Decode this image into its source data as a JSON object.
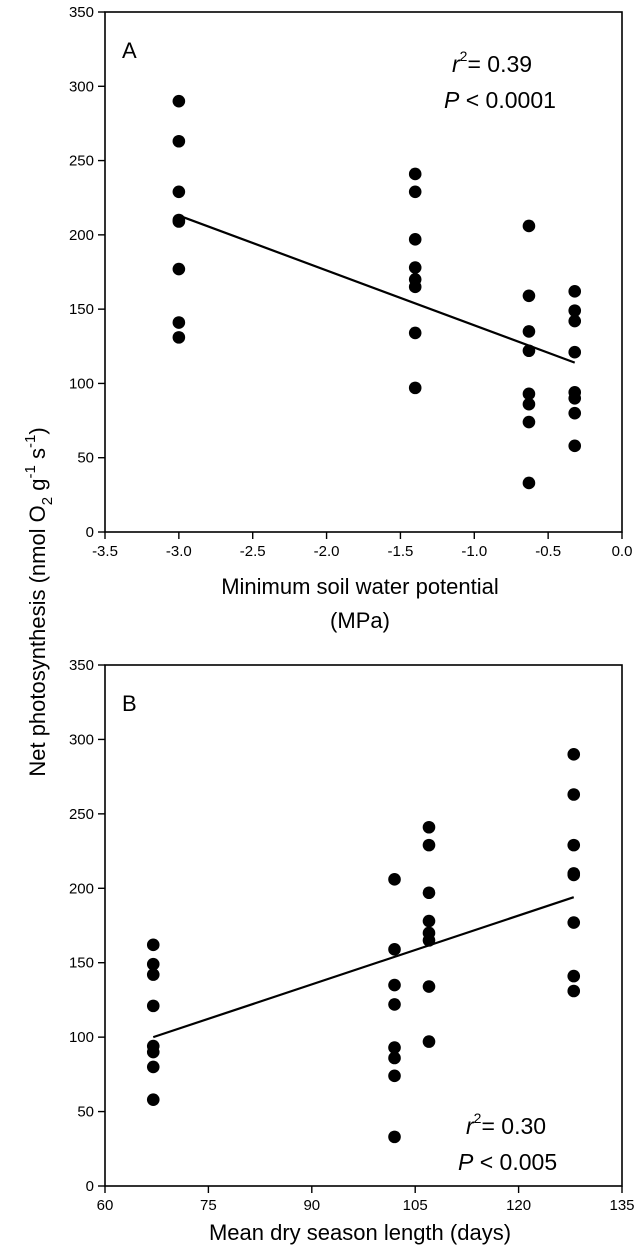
{
  "ylabel": "Net photosynthesis (nmol O₂ g⁻¹ s⁻¹)",
  "ylabel_parts": {
    "main": "Net photosynthesis (nmol O",
    "sub2": "2",
    "mid": " g",
    "sup1": "-1",
    "mid2": " s",
    "sup2": "-1",
    "end": ")"
  },
  "chart_data": [
    {
      "type": "scatter",
      "panel": "A",
      "xlabel": "Minimum soil water potential (MPa)",
      "xlabel_line1": "Minimum soil water potential",
      "xlabel_line2": "(MPa)",
      "ylabel": "Net photosynthesis (nmol O2 g-1 s-1)",
      "xlim": [
        -3.5,
        0.0
      ],
      "ylim": [
        0,
        350
      ],
      "xticks": [
        "-3.5",
        "-3.0",
        "-2.5",
        "-2.0",
        "-1.5",
        "-1.0",
        "-0.5",
        "0.0"
      ],
      "xtick_values": [
        -3.5,
        -3.0,
        -2.5,
        -2.0,
        -1.5,
        -1.0,
        -0.5,
        0.0
      ],
      "yticks": [
        "0",
        "50",
        "100",
        "150",
        "200",
        "250",
        "300",
        "350"
      ],
      "ytick_values": [
        0,
        50,
        100,
        150,
        200,
        250,
        300,
        350
      ],
      "points": [
        {
          "x": -3.0,
          "y": 290
        },
        {
          "x": -3.0,
          "y": 263
        },
        {
          "x": -3.0,
          "y": 229
        },
        {
          "x": -3.0,
          "y": 210
        },
        {
          "x": -3.0,
          "y": 209
        },
        {
          "x": -3.0,
          "y": 177
        },
        {
          "x": -3.0,
          "y": 141
        },
        {
          "x": -3.0,
          "y": 131
        },
        {
          "x": -1.4,
          "y": 241
        },
        {
          "x": -1.4,
          "y": 229
        },
        {
          "x": -1.4,
          "y": 197
        },
        {
          "x": -1.4,
          "y": 178
        },
        {
          "x": -1.4,
          "y": 170
        },
        {
          "x": -1.4,
          "y": 165
        },
        {
          "x": -1.4,
          "y": 134
        },
        {
          "x": -1.4,
          "y": 97
        },
        {
          "x": -0.63,
          "y": 206
        },
        {
          "x": -0.63,
          "y": 159
        },
        {
          "x": -0.63,
          "y": 135
        },
        {
          "x": -0.63,
          "y": 122
        },
        {
          "x": -0.63,
          "y": 93
        },
        {
          "x": -0.63,
          "y": 86
        },
        {
          "x": -0.63,
          "y": 74
        },
        {
          "x": -0.63,
          "y": 33
        },
        {
          "x": -0.32,
          "y": 162
        },
        {
          "x": -0.32,
          "y": 149
        },
        {
          "x": -0.32,
          "y": 142
        },
        {
          "x": -0.32,
          "y": 121
        },
        {
          "x": -0.32,
          "y": 94
        },
        {
          "x": -0.32,
          "y": 90
        },
        {
          "x": -0.32,
          "y": 80
        },
        {
          "x": -0.32,
          "y": 58
        }
      ],
      "fit_line": [
        {
          "x": -3.0,
          "y": 213
        },
        {
          "x": -0.32,
          "y": 114
        }
      ],
      "annotation": {
        "r2_label": "r",
        "r2_sup": "2",
        "r2_value": "= 0.39",
        "p_label": "P",
        "p_value": " < 0.0001"
      }
    },
    {
      "type": "scatter",
      "panel": "B",
      "xlabel": "Mean dry season length (days)",
      "ylabel": "Net photosynthesis (nmol O2 g-1 s-1)",
      "xlim": [
        60,
        135
      ],
      "ylim": [
        0,
        350
      ],
      "xticks": [
        "60",
        "75",
        "90",
        "105",
        "120",
        "135"
      ],
      "xtick_values": [
        60,
        75,
        90,
        105,
        120,
        135
      ],
      "yticks": [
        "0",
        "50",
        "100",
        "150",
        "200",
        "250",
        "300",
        "350"
      ],
      "ytick_values": [
        0,
        50,
        100,
        150,
        200,
        250,
        300,
        350
      ],
      "points": [
        {
          "x": 67,
          "y": 162
        },
        {
          "x": 67,
          "y": 149
        },
        {
          "x": 67,
          "y": 142
        },
        {
          "x": 67,
          "y": 121
        },
        {
          "x": 67,
          "y": 94
        },
        {
          "x": 67,
          "y": 90
        },
        {
          "x": 67,
          "y": 80
        },
        {
          "x": 67,
          "y": 58
        },
        {
          "x": 102,
          "y": 206
        },
        {
          "x": 102,
          "y": 159
        },
        {
          "x": 102,
          "y": 135
        },
        {
          "x": 102,
          "y": 122
        },
        {
          "x": 102,
          "y": 93
        },
        {
          "x": 102,
          "y": 86
        },
        {
          "x": 102,
          "y": 74
        },
        {
          "x": 102,
          "y": 33
        },
        {
          "x": 107,
          "y": 241
        },
        {
          "x": 107,
          "y": 229
        },
        {
          "x": 107,
          "y": 197
        },
        {
          "x": 107,
          "y": 178
        },
        {
          "x": 107,
          "y": 170
        },
        {
          "x": 107,
          "y": 165
        },
        {
          "x": 107,
          "y": 134
        },
        {
          "x": 107,
          "y": 97
        },
        {
          "x": 128,
          "y": 290
        },
        {
          "x": 128,
          "y": 263
        },
        {
          "x": 128,
          "y": 229
        },
        {
          "x": 128,
          "y": 210
        },
        {
          "x": 128,
          "y": 209
        },
        {
          "x": 128,
          "y": 177
        },
        {
          "x": 128,
          "y": 141
        },
        {
          "x": 128,
          "y": 131
        }
      ],
      "fit_line": [
        {
          "x": 67,
          "y": 100
        },
        {
          "x": 128,
          "y": 194
        }
      ],
      "annotation": {
        "r2_label": "r",
        "r2_sup": "2",
        "r2_value": "= 0.30",
        "p_label": "P",
        "p_value": " < 0.005"
      }
    }
  ],
  "colors": {
    "marker": "#000000",
    "line": "#000000",
    "axis": "#000000"
  }
}
